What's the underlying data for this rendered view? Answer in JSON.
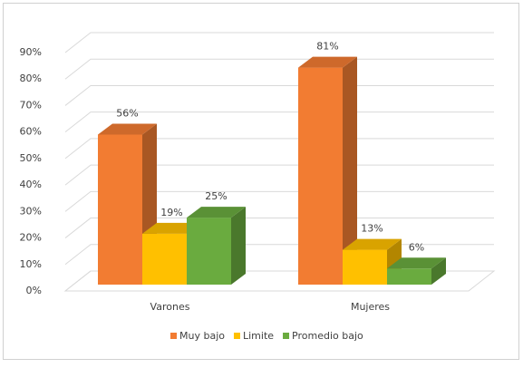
{
  "chart_data": {
    "type": "bar3d",
    "categories": [
      "Varones",
      "Mujeres"
    ],
    "series": [
      {
        "name": "Muy bajo",
        "color": "#f27c32",
        "values": [
          56,
          81
        ],
        "value_labels": [
          "56%",
          "81%"
        ]
      },
      {
        "name": "Limite",
        "color": "#ffc000",
        "values": [
          19,
          13
        ],
        "value_labels": [
          "19%",
          "13%"
        ]
      },
      {
        "name": "Promedio bajo",
        "color": "#6aab3f",
        "values": [
          25,
          6
        ],
        "value_labels": [
          "25%",
          "6%"
        ]
      }
    ],
    "ylim": [
      0,
      90
    ],
    "yticks": [
      {
        "value": 0,
        "label": "0%"
      },
      {
        "value": 10,
        "label": "10%"
      },
      {
        "value": 20,
        "label": "20%"
      },
      {
        "value": 30,
        "label": "30%"
      },
      {
        "value": 40,
        "label": "40%"
      },
      {
        "value": 50,
        "label": "50%"
      },
      {
        "value": 60,
        "label": "60%"
      },
      {
        "value": 70,
        "label": "70%"
      },
      {
        "value": 80,
        "label": "80%"
      },
      {
        "value": 90,
        "label": "90%"
      }
    ],
    "grid": true,
    "legend": "bottom"
  }
}
